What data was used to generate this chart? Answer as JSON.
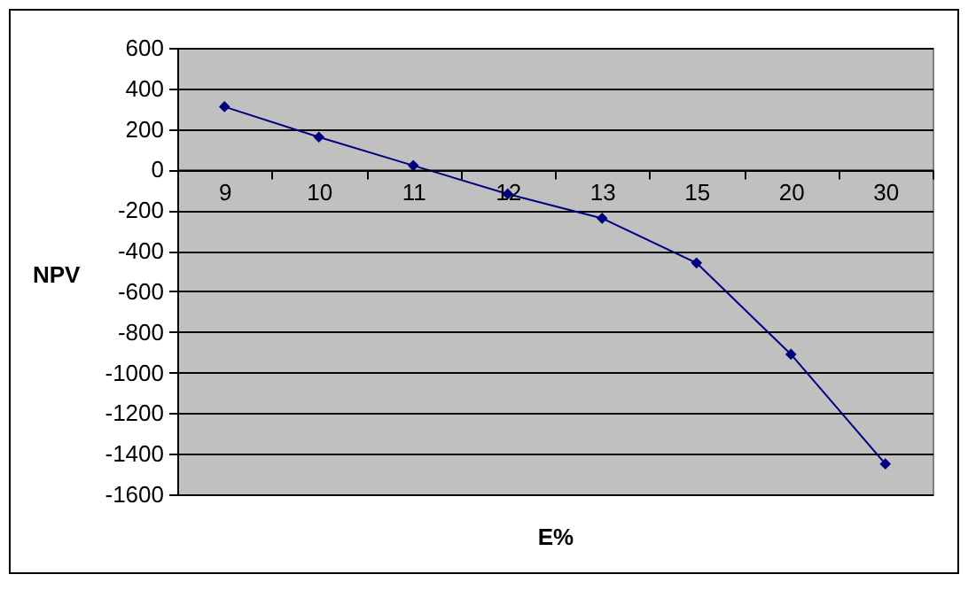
{
  "chart_data": {
    "type": "line",
    "xlabel": "E%",
    "ylabel": "NPV",
    "categories": [
      "9",
      "10",
      "11",
      "12",
      "13",
      "15",
      "20",
      "30"
    ],
    "series": [
      {
        "color": "#000080",
        "values": [
          310,
          160,
          20,
          -120,
          -240,
          -460,
          -910,
          -1450
        ]
      }
    ],
    "ylim": [
      -1600,
      600
    ],
    "yticks": [
      -1600,
      -1400,
      -1200,
      -1000,
      -800,
      -600,
      -400,
      -200,
      0,
      200,
      400,
      600
    ],
    "grid": "y",
    "marker": "diamond",
    "line_style": "solid"
  }
}
